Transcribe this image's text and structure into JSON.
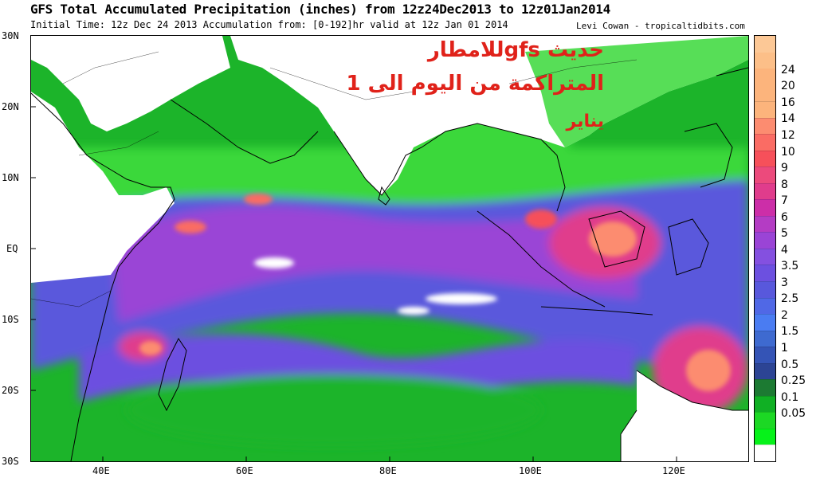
{
  "header": {
    "title": "GFS Total Accumulated Precipitation (inches) from 12z24Dec2013 to 12z01Jan2014",
    "subtitle": "Initial Time: 12z Dec 24 2013 Accumulation from: [0-192]hr valid at 12z Jan 01 2014",
    "credit": "Levi Cowan - tropicaltidbits.com"
  },
  "overlay_text": {
    "line1": "حديث gfsللامطار",
    "line2": "المتراكمة من اليوم الى 1",
    "line3": "يناير"
  },
  "axes": {
    "lat_labels": [
      "30N",
      "20N",
      "10N",
      "EQ",
      "10S",
      "20S",
      "30S"
    ],
    "lon_labels": [
      "40E",
      "60E",
      "80E",
      "100E",
      "120E"
    ]
  },
  "legend": {
    "labels": [
      "24",
      "20",
      "16",
      "14",
      "12",
      "10",
      "9",
      "8",
      "7",
      "6",
      "5",
      "4",
      "3.5",
      "3",
      "2.5",
      "2",
      "1.5",
      "1",
      "0.5",
      "0.25",
      "0.1",
      "0.05"
    ],
    "colors": [
      "#fcb47c",
      "#fc8c70",
      "#fa6c64",
      "#f6505a",
      "#ec4a7c",
      "#e03c8c",
      "#cc2ea8",
      "#b43cc4",
      "#9a44d6",
      "#8450e0",
      "#6c50e0",
      "#5858dc",
      "#5068e6",
      "#4a7cf2",
      "#3e6ad0",
      "#3454b6",
      "#2c4494",
      "#1c7a32",
      "#10b024",
      "#1cd824",
      "#06f21a",
      "#ffffff"
    ]
  },
  "map": {
    "lon_range": [
      30,
      130
    ],
    "lat_range": [
      -30,
      30
    ],
    "ocean_base": "purple-green precipitation field"
  }
}
